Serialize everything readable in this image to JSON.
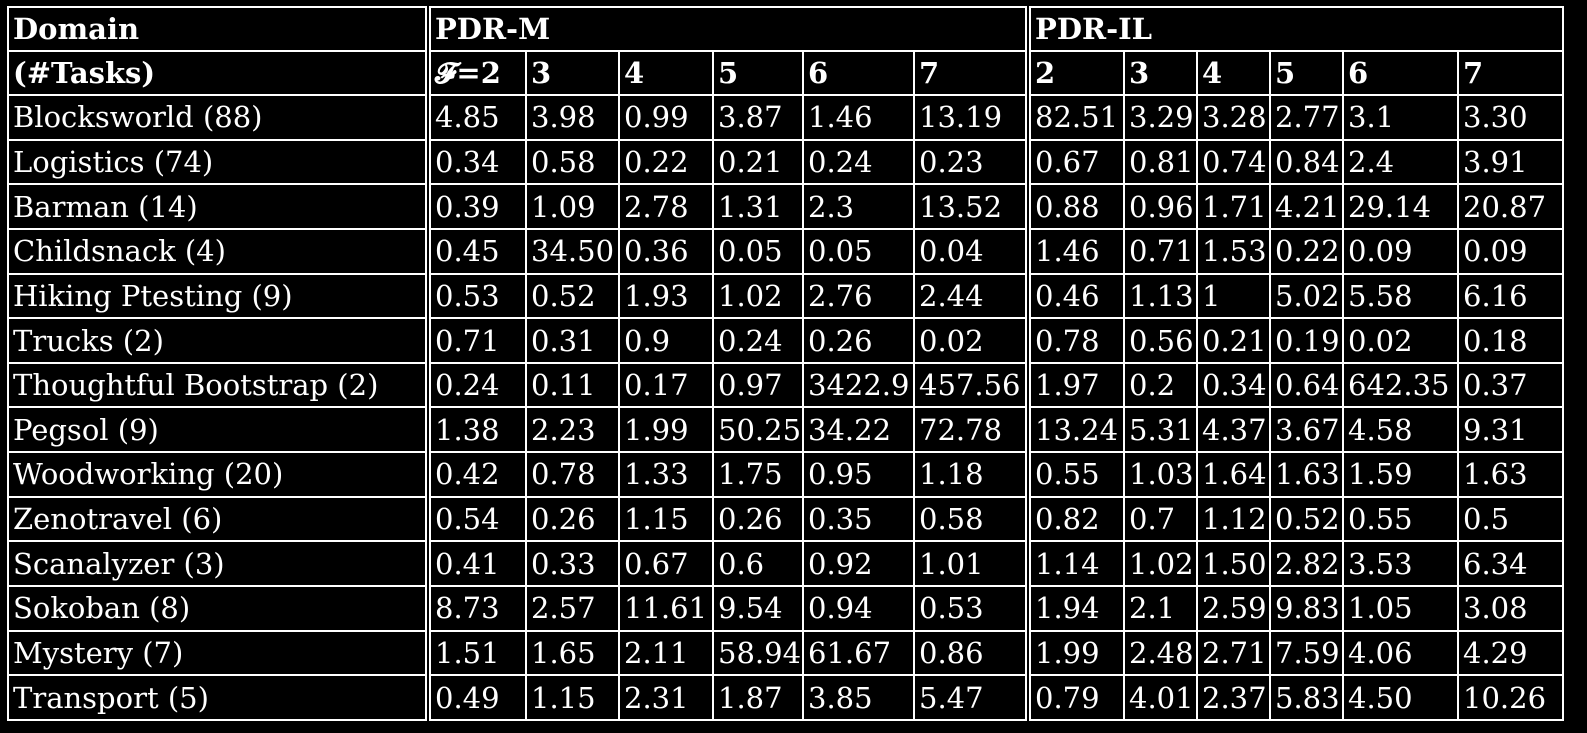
{
  "table": {
    "header": {
      "domain_label": "Domain",
      "tasks_label": "(#Tasks)",
      "group1": "PDR-M",
      "group2": "PDR-IL",
      "group1_cols": [
        "𝓕=2",
        "3",
        "4",
        "5",
        "6",
        "7"
      ],
      "group2_cols": [
        "2",
        "3",
        "4",
        "5",
        "6",
        "7"
      ]
    },
    "rows": [
      {
        "domain": "Blocksworld (88)",
        "m": [
          "4.85",
          "3.98",
          "0.99",
          "3.87",
          "1.46",
          "13.19"
        ],
        "il": [
          "82.51",
          "3.29",
          "3.28",
          "2.77",
          "3.1",
          "3.30"
        ]
      },
      {
        "domain": "Logistics (74)",
        "m": [
          "0.34",
          "0.58",
          "0.22",
          "0.21",
          "0.24",
          "0.23"
        ],
        "il": [
          "0.67",
          "0.81",
          "0.74",
          "0.84",
          "2.4",
          "3.91"
        ]
      },
      {
        "domain": "Barman (14)",
        "m": [
          "0.39",
          "1.09",
          "2.78",
          "1.31",
          "2.3",
          "13.52"
        ],
        "il": [
          "0.88",
          "0.96",
          "1.71",
          "4.21",
          "29.14",
          "20.87"
        ]
      },
      {
        "domain": "Childsnack (4)",
        "m": [
          "0.45",
          "34.50",
          "0.36",
          "0.05",
          "0.05",
          "0.04"
        ],
        "il": [
          "1.46",
          "0.71",
          "1.53",
          "0.22",
          "0.09",
          "0.09"
        ]
      },
      {
        "domain": "Hiking Ptesting (9)",
        "m": [
          "0.53",
          "0.52",
          "1.93",
          "1.02",
          "2.76",
          "2.44"
        ],
        "il": [
          "0.46",
          "1.13",
          "1",
          "5.02",
          "5.58",
          "6.16"
        ]
      },
      {
        "domain": "Trucks (2)",
        "m": [
          "0.71",
          "0.31",
          "0.9",
          "0.24",
          "0.26",
          "0.02"
        ],
        "il": [
          "0.78",
          "0.56",
          "0.21",
          "0.19",
          "0.02",
          "0.18"
        ]
      },
      {
        "domain": "Thoughtful Bootstrap (2)",
        "m": [
          "0.24",
          "0.11",
          "0.17",
          "0.97",
          "3422.9",
          "457.56"
        ],
        "il": [
          "1.97",
          "0.2",
          "0.34",
          "0.64",
          "642.35",
          "0.37"
        ]
      },
      {
        "domain": "Pegsol (9)",
        "m": [
          "1.38",
          "2.23",
          "1.99",
          "50.25",
          "34.22",
          "72.78"
        ],
        "il": [
          "13.24",
          "5.31",
          "4.37",
          "3.67",
          "4.58",
          "9.31"
        ]
      },
      {
        "domain": "Woodworking (20)",
        "m": [
          "0.42",
          "0.78",
          "1.33",
          "1.75",
          "0.95",
          "1.18"
        ],
        "il": [
          "0.55",
          "1.03",
          "1.64",
          "1.63",
          "1.59",
          "1.63"
        ]
      },
      {
        "domain": "Zenotravel (6)",
        "m": [
          "0.54",
          "0.26",
          "1.15",
          "0.26",
          "0.35",
          "0.58"
        ],
        "il": [
          "0.82",
          "0.7",
          "1.12",
          "0.52",
          "0.55",
          "0.5"
        ]
      },
      {
        "domain": "Scanalyzer (3)",
        "m": [
          "0.41",
          "0.33",
          "0.67",
          "0.6",
          "0.92",
          "1.01"
        ],
        "il": [
          "1.14",
          "1.02",
          "1.50",
          "2.82",
          "3.53",
          "6.34"
        ]
      },
      {
        "domain": "Sokoban (8)",
        "m": [
          "8.73",
          "2.57",
          "11.61",
          "9.54",
          "0.94",
          "0.53"
        ],
        "il": [
          "1.94",
          "2.1",
          "2.59",
          "9.83",
          "1.05",
          "3.08"
        ]
      },
      {
        "domain": "Mystery (7)",
        "m": [
          "1.51",
          "1.65",
          "2.11",
          "58.94",
          "61.67",
          "0.86"
        ],
        "il": [
          "1.99",
          "2.48",
          "2.71",
          "7.59",
          "4.06",
          "4.29"
        ]
      },
      {
        "domain": "Transport (5)",
        "m": [
          "0.49",
          "1.15",
          "2.31",
          "1.87",
          "3.85",
          "5.47"
        ],
        "il": [
          "0.79",
          "4.01",
          "2.37",
          "5.83",
          "4.50",
          "10.26"
        ]
      }
    ]
  }
}
